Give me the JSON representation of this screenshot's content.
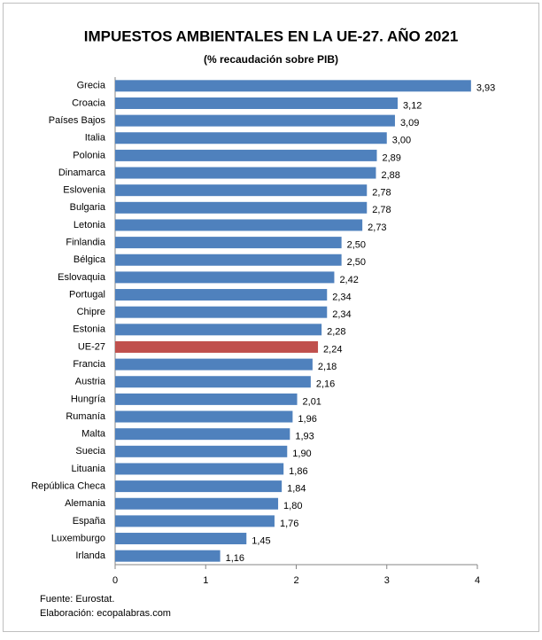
{
  "chart_data": {
    "type": "bar",
    "orientation": "horizontal",
    "title": "IMPUESTOS AMBIENTALES EN LA UE-27. AÑO 2021",
    "subtitle": "(% recaudación sobre PIB)",
    "categories": [
      "Grecia",
      "Croacia",
      "Países Bajos",
      "Italia",
      "Polonia",
      "Dinamarca",
      "Eslovenia",
      "Bulgaria",
      "Letonia",
      "Finlandia",
      "Bélgica",
      "Eslovaquia",
      "Portugal",
      "Chipre",
      "Estonia",
      "UE-27",
      "Francia",
      "Austria",
      "Hungría",
      "Rumanía",
      "Malta",
      "Suecia",
      "Lituania",
      "República Checa",
      "Alemania",
      "España",
      "Luxemburgo",
      "Irlanda"
    ],
    "values": [
      3.93,
      3.12,
      3.09,
      3.0,
      2.89,
      2.88,
      2.78,
      2.78,
      2.73,
      2.5,
      2.5,
      2.42,
      2.34,
      2.34,
      2.28,
      2.24,
      2.18,
      2.16,
      2.01,
      1.96,
      1.93,
      1.9,
      1.86,
      1.84,
      1.8,
      1.76,
      1.45,
      1.16
    ],
    "value_labels": [
      "3,93",
      "3,12",
      "3,09",
      "3,00",
      "2,89",
      "2,88",
      "2,78",
      "2,78",
      "2,73",
      "2,50",
      "2,50",
      "2,42",
      "2,34",
      "2,34",
      "2,28",
      "2,24",
      "2,18",
      "2,16",
      "2,01",
      "1,96",
      "1,93",
      "1,90",
      "1,86",
      "1,84",
      "1,80",
      "1,76",
      "1,45",
      "1,16"
    ],
    "colors": [
      "#4f81bd",
      "#4f81bd",
      "#4f81bd",
      "#4f81bd",
      "#4f81bd",
      "#4f81bd",
      "#4f81bd",
      "#4f81bd",
      "#4f81bd",
      "#4f81bd",
      "#4f81bd",
      "#4f81bd",
      "#4f81bd",
      "#4f81bd",
      "#4f81bd",
      "#c0504d",
      "#4f81bd",
      "#4f81bd",
      "#4f81bd",
      "#4f81bd",
      "#4f81bd",
      "#4f81bd",
      "#4f81bd",
      "#4f81bd",
      "#4f81bd",
      "#4f81bd",
      "#4f81bd",
      "#4f81bd"
    ],
    "xlim": [
      0,
      4
    ],
    "xticks": [
      0,
      1,
      2,
      3,
      4
    ],
    "grid": false,
    "notes": [
      "Fuente: Eurostat.",
      "Elaboración: ecopalabras.com"
    ]
  }
}
